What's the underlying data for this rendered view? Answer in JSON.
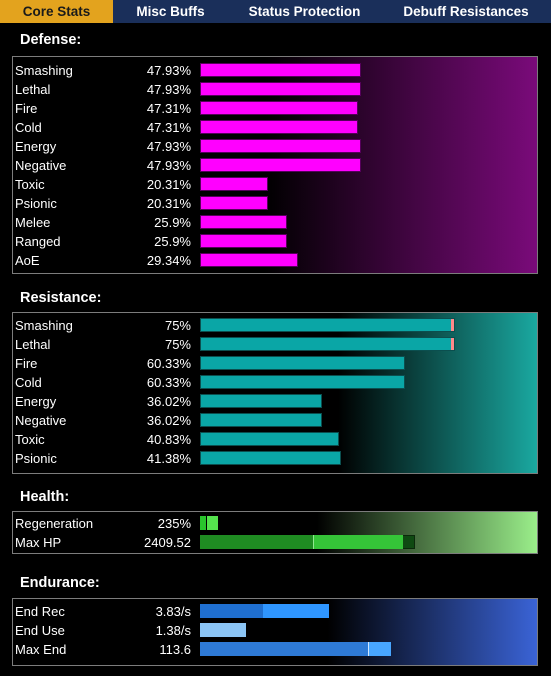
{
  "tabs": [
    {
      "label": "Core Stats",
      "active": true
    },
    {
      "label": "Misc Buffs",
      "active": false
    },
    {
      "label": "Status Protection",
      "active": false
    },
    {
      "label": "Debuff Resistances",
      "active": false
    }
  ],
  "sections": {
    "defense": {
      "title": "Defense:",
      "color": "#ff00ff",
      "rows": [
        {
          "label": "Smashing",
          "value": "47.93%",
          "amount": 47.93
        },
        {
          "label": "Lethal",
          "value": "47.93%",
          "amount": 47.93
        },
        {
          "label": "Fire",
          "value": "47.31%",
          "amount": 47.31
        },
        {
          "label": "Cold",
          "value": "47.31%",
          "amount": 47.31
        },
        {
          "label": "Energy",
          "value": "47.93%",
          "amount": 47.93
        },
        {
          "label": "Negative",
          "value": "47.93%",
          "amount": 47.93
        },
        {
          "label": "Toxic",
          "value": "20.31%",
          "amount": 20.31
        },
        {
          "label": "Psionic",
          "value": "20.31%",
          "amount": 20.31
        },
        {
          "label": "Melee",
          "value": "25.9%",
          "amount": 25.9
        },
        {
          "label": "Ranged",
          "value": "25.9%",
          "amount": 25.9
        },
        {
          "label": "AoE",
          "value": "29.34%",
          "amount": 29.34
        }
      ]
    },
    "resistance": {
      "title": "Resistance:",
      "color": "#0aa6a6",
      "cap_color": "#ff8a8a",
      "rows": [
        {
          "label": "Smashing",
          "value": "75%",
          "amount": 75
        },
        {
          "label": "Lethal",
          "value": "75%",
          "amount": 75
        },
        {
          "label": "Fire",
          "value": "60.33%",
          "amount": 60.33
        },
        {
          "label": "Cold",
          "value": "60.33%",
          "amount": 60.33
        },
        {
          "label": "Energy",
          "value": "36.02%",
          "amount": 36.02
        },
        {
          "label": "Negative",
          "value": "36.02%",
          "amount": 36.02
        },
        {
          "label": "Toxic",
          "value": "40.83%",
          "amount": 40.83
        },
        {
          "label": "Psionic",
          "value": "41.38%",
          "amount": 41.38
        }
      ]
    },
    "health": {
      "title": "Health:",
      "rows": [
        {
          "label": "Regeneration",
          "value": "235%"
        },
        {
          "label": "Max HP",
          "value": "2409.52"
        }
      ]
    },
    "endurance": {
      "title": "Endurance:",
      "rows": [
        {
          "label": "End Rec",
          "value": "3.83/s"
        },
        {
          "label": "End Use",
          "value": "1.38/s"
        },
        {
          "label": "Max End",
          "value": "113.6"
        }
      ]
    }
  }
}
